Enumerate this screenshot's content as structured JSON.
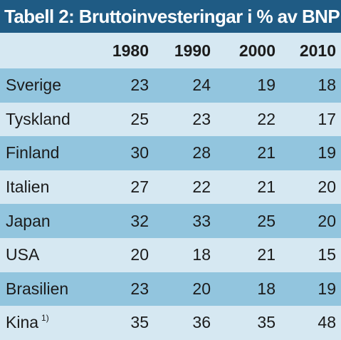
{
  "title": "Tabell 2: Bruttoinvesteringar i % av BNP",
  "columns": [
    "1980",
    "1990",
    "2000",
    "2010"
  ],
  "rows": [
    {
      "label": "Sverige",
      "values": [
        "23",
        "24",
        "19",
        "18"
      ]
    },
    {
      "label": "Tyskland",
      "values": [
        "25",
        "23",
        "22",
        "17"
      ]
    },
    {
      "label": "Finland",
      "values": [
        "30",
        "28",
        "21",
        "19"
      ]
    },
    {
      "label": "Italien",
      "values": [
        "27",
        "22",
        "21",
        "20"
      ]
    },
    {
      "label": "Japan",
      "values": [
        "32",
        "33",
        "25",
        "20"
      ]
    },
    {
      "label": "USA",
      "values": [
        "20",
        "18",
        "21",
        "15"
      ]
    },
    {
      "label": "Brasilien",
      "values": [
        "23",
        "20",
        "18",
        "19"
      ]
    },
    {
      "label": "Kina",
      "footnote": "1)",
      "values": [
        "35",
        "36",
        "35",
        "48"
      ]
    }
  ],
  "colors": {
    "title_bg": "#1f5b84",
    "row_dark": "#92c5de",
    "row_light": "#d6e8f2"
  }
}
